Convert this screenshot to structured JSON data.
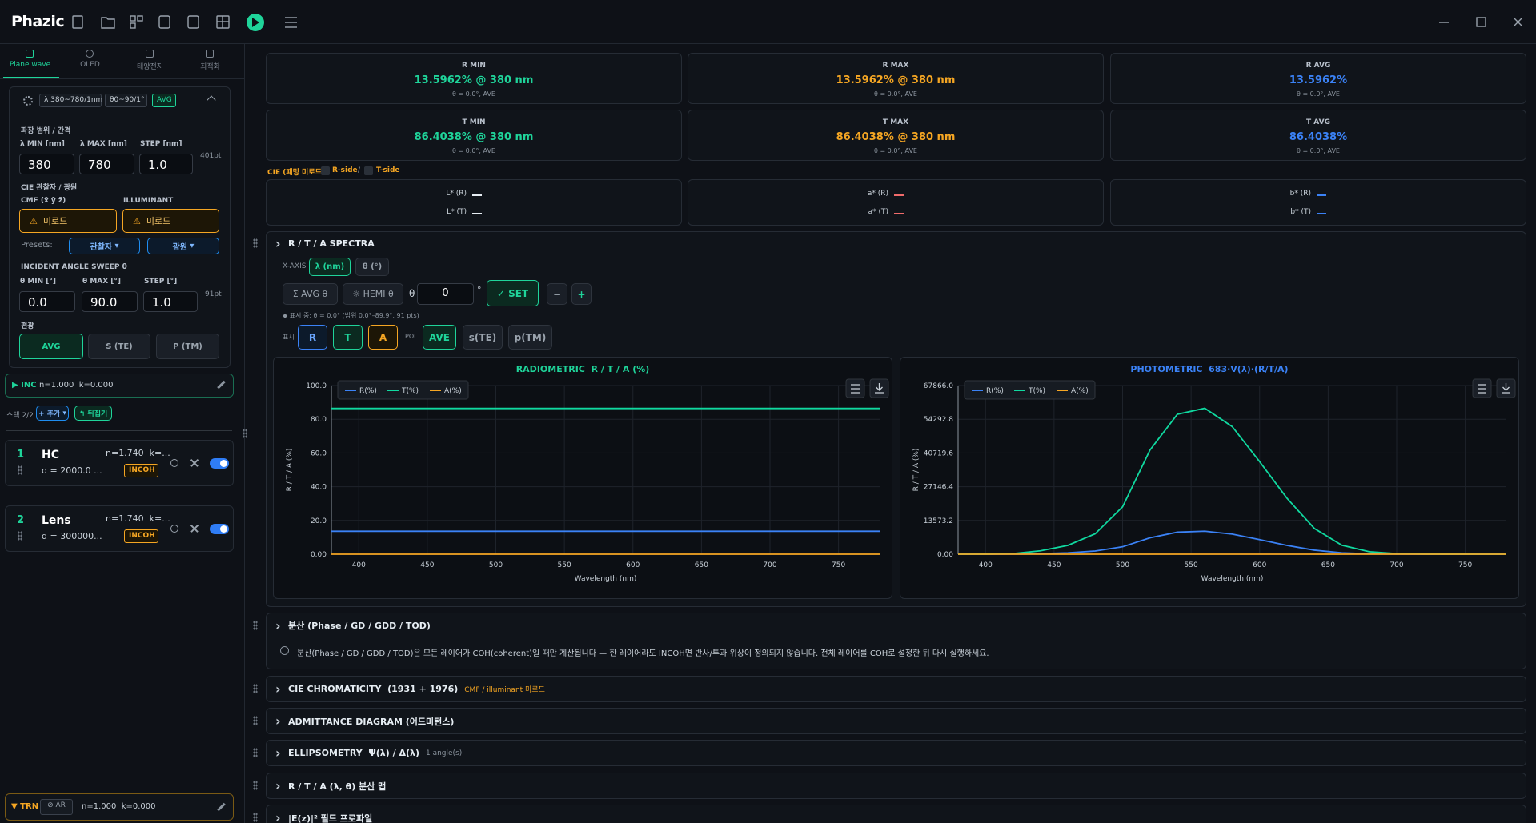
{
  "app": {
    "title": "Phazic"
  },
  "tabs": [
    "Plane wave",
    "OLED",
    "태양전지",
    "최적화"
  ],
  "settings": {
    "chips": [
      "λ 380~780/1nm",
      "θ0~90/1°",
      "AVG"
    ],
    "range_title": "파장 범위 / 간격",
    "fields": [
      {
        "label": "λ MIN [nm]",
        "value": "380"
      },
      {
        "label": "λ MAX [nm]",
        "value": "780"
      },
      {
        "label": "STEP [nm]",
        "value": "1.0"
      }
    ],
    "points": "401pt",
    "cie_title": "CIE 관찰자 / 광원",
    "cmf_label": "CMF (x̄ ȳ z̄)",
    "illuminant_label": "ILLUMINANT",
    "cmf_value": "미로드",
    "illuminant_value": "미로드",
    "presets_label": "Presets:",
    "preset_observer": "관찰자",
    "preset_illuminant": "광원",
    "angle_title": "INCIDENT ANGLE SWEEP θ",
    "angle_fields": [
      {
        "label": "θ MIN [°]",
        "value": "0.0"
      },
      {
        "label": "θ MAX [°]",
        "value": "90.0"
      },
      {
        "label": "STEP [°]",
        "value": "1.0"
      }
    ],
    "angle_points": "91pt",
    "pol_title": "편광",
    "pol": [
      "AVG",
      "S (TE)",
      "P (TM)"
    ]
  },
  "inc": {
    "label": "▶ INC",
    "nk": "n=1.000  k=0.000"
  },
  "stack": {
    "label": "스택 2/2",
    "add": "+ 추가",
    "flip": "↰ 뒤집기"
  },
  "layers": [
    {
      "index": "1",
      "name": "HC",
      "nk": "n=1.740  k=...",
      "d": "d = 2000.0 ...",
      "mode": "INCOH"
    },
    {
      "index": "2",
      "name": "Lens",
      "nk": "n=1.740  k=...",
      "d": "d = 300000...",
      "mode": "INCOH"
    }
  ],
  "trn": {
    "label": "▼ TRN",
    "coat": "⊘ AR",
    "nk": "n=1.000  k=0.000"
  },
  "stats": [
    {
      "label": "R MIN",
      "value": "13.5962% @ 380 nm",
      "sub": "θ = 0.0°, AVE"
    },
    {
      "label": "R MAX",
      "value": "13.5962% @ 380 nm",
      "sub": "θ = 0.0°, AVE"
    },
    {
      "label": "R AVG",
      "value": "13.5962%",
      "sub": "θ = 0.0°, AVE"
    },
    {
      "label": "T MIN",
      "value": "86.4038% @ 380 nm",
      "sub": "θ = 0.0°, AVE"
    },
    {
      "label": "T MAX",
      "value": "86.4038% @ 380 nm",
      "sub": "θ = 0.0°, AVE"
    },
    {
      "label": "T AVG",
      "value": "86.4038%",
      "sub": "θ = 0.0°, AVE"
    }
  ],
  "cie": {
    "label": "CIE (패밍 미로드)",
    "r_side": "R-side",
    "sep": "/",
    "t_side": "T-side",
    "lab": [
      [
        "L* (R)",
        "L* (T)"
      ],
      [
        "a* (R)",
        "a* (T)"
      ],
      [
        "b* (R)",
        "b* (T)"
      ]
    ]
  },
  "spectra": {
    "title": "R / T / A SPECTRA",
    "x_axis_label": "X-AXIS",
    "x_axis_options": [
      "λ (nm)",
      "θ (°)"
    ],
    "avg": "Σ AVG θ",
    "hemi": "☼ HEMI θ",
    "theta": "θ",
    "theta_value": "0",
    "degree": "°",
    "set": "✓ SET",
    "minus": "−",
    "plus": "+",
    "note": "◆ 표시 중: θ = 0.0° (범위 0.0°–89.9°, 91 pts)",
    "show_label": "표시",
    "show": [
      "R",
      "T",
      "A"
    ],
    "pol_label": "POL",
    "pol": [
      "AVE",
      "s(TE)",
      "p(TM)"
    ]
  },
  "chart_data": [
    {
      "type": "line",
      "title": "RADIOMETRIC  R / T / A (%)",
      "x_label": "Wavelength (nm)",
      "y_label": "R / T / A (%)",
      "x": [
        380,
        400,
        420,
        440,
        460,
        480,
        500,
        520,
        540,
        560,
        580,
        600,
        620,
        640,
        660,
        680,
        700,
        720,
        740,
        760,
        780
      ],
      "xlim": [
        380,
        780
      ],
      "xticks": [
        400,
        450,
        500,
        550,
        600,
        650,
        700,
        750
      ],
      "ylim": [
        0,
        100
      ],
      "yticks": [
        {
          "value": 0,
          "label": "0.00"
        },
        {
          "value": 20,
          "label": "20.0"
        },
        {
          "value": 40,
          "label": "40.0"
        },
        {
          "value": 60,
          "label": "60.0"
        },
        {
          "value": 80,
          "label": "80.0"
        },
        {
          "value": 100,
          "label": "100.0"
        }
      ],
      "grid": true,
      "series": [
        {
          "name": "R(%)",
          "color": "#3b82f6",
          "values": [
            13.5962,
            13.5962,
            13.5962,
            13.5962,
            13.5962,
            13.5962,
            13.5962,
            13.5962,
            13.5962,
            13.5962,
            13.5962,
            13.5962,
            13.5962,
            13.5962,
            13.5962,
            13.5962,
            13.5962,
            13.5962,
            13.5962,
            13.5962,
            13.5962
          ]
        },
        {
          "name": "T(%)",
          "color": "#10d9a0",
          "values": [
            86.4038,
            86.4038,
            86.4038,
            86.4038,
            86.4038,
            86.4038,
            86.4038,
            86.4038,
            86.4038,
            86.4038,
            86.4038,
            86.4038,
            86.4038,
            86.4038,
            86.4038,
            86.4038,
            86.4038,
            86.4038,
            86.4038,
            86.4038,
            86.4038
          ]
        },
        {
          "name": "A(%)",
          "color": "#f5a623",
          "values": [
            0,
            0,
            0,
            0,
            0,
            0,
            0,
            0,
            0,
            0,
            0,
            0,
            0,
            0,
            0,
            0,
            0,
            0,
            0,
            0,
            0
          ]
        }
      ]
    },
    {
      "type": "line",
      "title": "PHOTOMETRIC  683·V(λ)·(R/T/A)",
      "x_label": "Wavelength (nm)",
      "y_label": "R / T / A (%)",
      "x": [
        380,
        400,
        420,
        440,
        460,
        480,
        500,
        520,
        540,
        560,
        580,
        600,
        620,
        640,
        660,
        680,
        700,
        720,
        740,
        760,
        780
      ],
      "xlim": [
        380,
        780
      ],
      "xticks": [
        400,
        450,
        500,
        550,
        600,
        650,
        700,
        750
      ],
      "ylim": [
        0,
        67866.0
      ],
      "yticks": [
        {
          "value": 0,
          "label": "0.00"
        },
        13573.2,
        27146.4,
        40719.6,
        54292.8,
        {
          "value": 67866.0,
          "label": "67866.0"
        }
      ],
      "grid": true,
      "series": [
        {
          "name": "R(%)",
          "color": "#3b82f6",
          "values": [
            0.4,
            3.7,
            37,
            214,
            557,
            1291,
            2999,
            6593,
            8859,
            9240,
            8079,
            5859,
            3538,
            1625,
            566,
            158,
            38,
            10,
            2.3,
            0.6,
            0.1
          ]
        },
        {
          "name": "T(%)",
          "color": "#10d9a0",
          "values": [
            2.4,
            23.6,
            236,
            1357,
            3541,
            8203,
            19061,
            41899,
            56297,
            58717,
            51340,
            37237,
            22484,
            10327,
            3600,
            1003,
            242,
            62,
            15,
            3.5,
            0.9
          ]
        },
        {
          "name": "A(%)",
          "color": "#f5a623",
          "values": [
            0,
            0,
            0,
            0,
            0,
            0,
            0,
            0,
            0,
            0,
            0,
            0,
            0,
            0,
            0,
            0,
            0,
            0,
            0,
            0,
            0
          ]
        }
      ]
    }
  ],
  "dispersion": {
    "title": "분산 (Phase / GD / GDD / TOD)",
    "text": "분산(Phase / GD / GDD / TOD)은 모든 레이어가 COH(coherent)일 때만 계산됩니다 — 한 레이어라도 INCOH면 반사/투과 위상이 정의되지 않습니다. 전체 레이어를 COH로 설정한 뒤 다시 실행하세요."
  },
  "sections": [
    {
      "title": "CIE CHROMATICITY  (1931 + 1976)",
      "warning": "CMF / illuminant 미로드"
    },
    {
      "title": "ADMITTANCE DIAGRAM (어드미턴스)"
    },
    {
      "title": "ELLIPSOMETRY  Ψ(λ) / Δ(λ)",
      "note": "1 angle(s)"
    },
    {
      "title": "R / T / A (λ, θ) 분산 맵"
    },
    {
      "title": "|E(z)|² 필드 프로파일"
    }
  ]
}
